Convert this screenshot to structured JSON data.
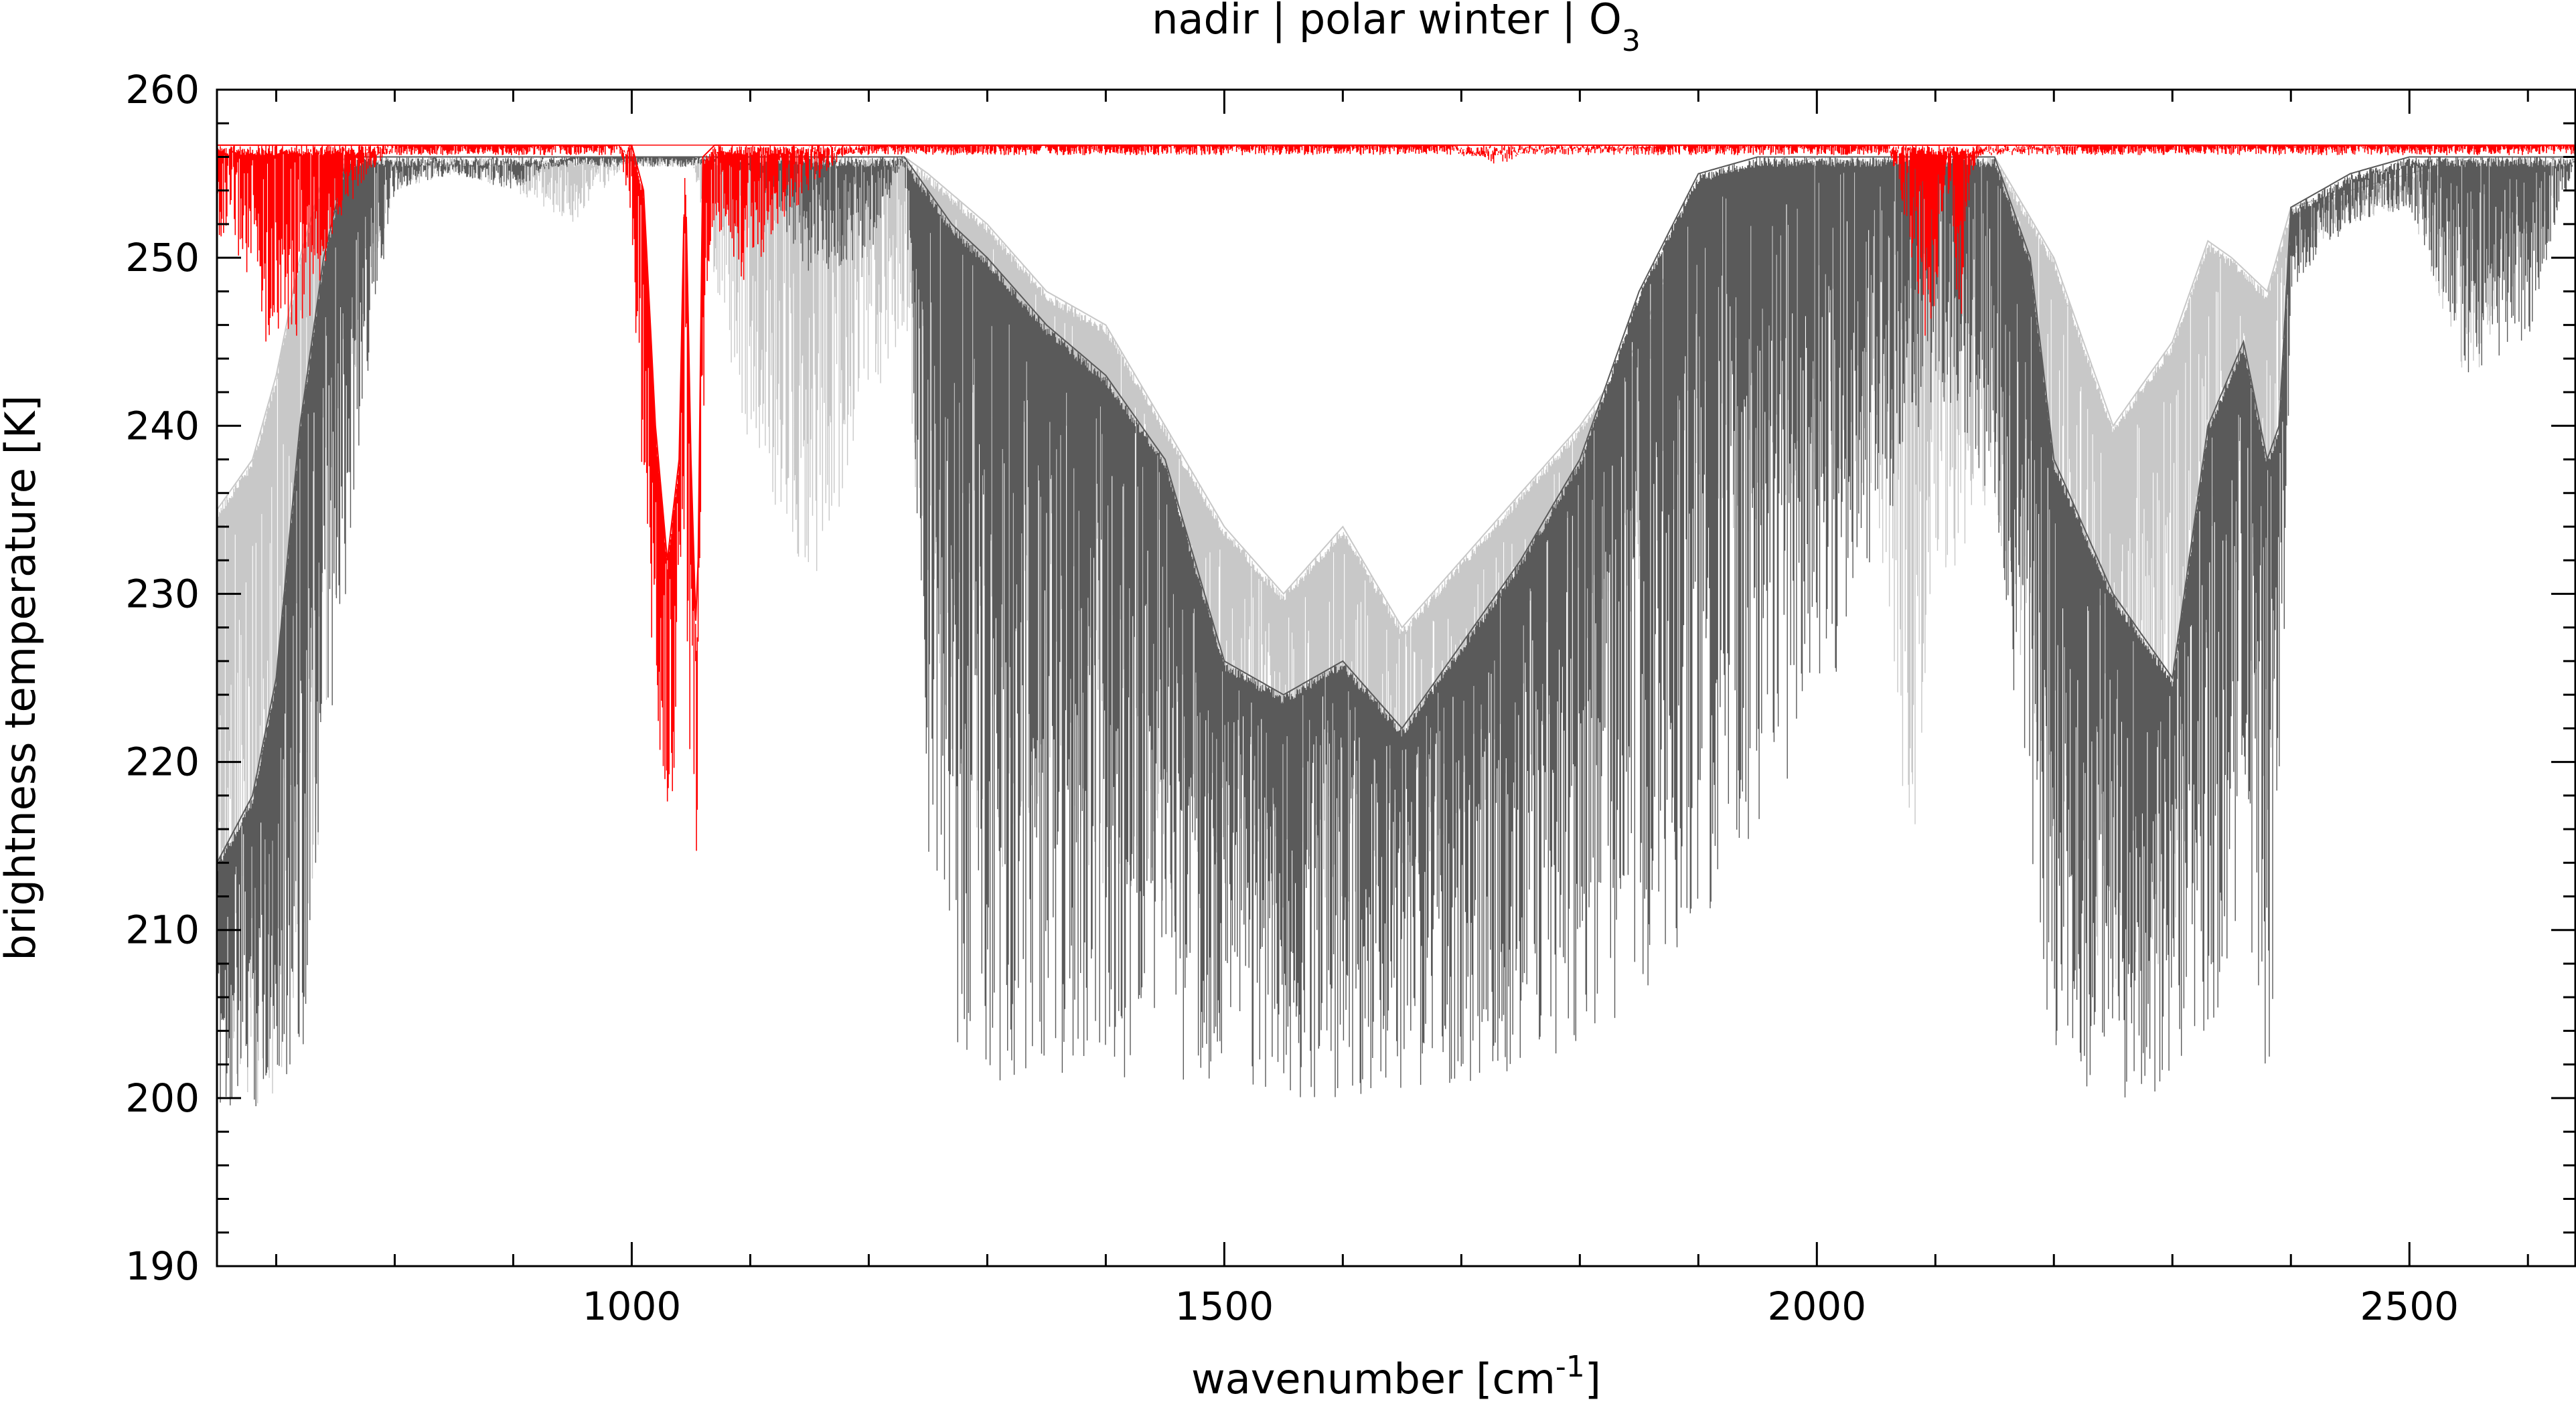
{
  "chart_data": {
    "type": "line",
    "title": "nadir | polar winter | O",
    "title_subscript": "3",
    "xlabel": "wavenumber [cm",
    "xlabel_superscript": "-1",
    "xlabel_suffix": "]",
    "ylabel": "brightness temperature [K]",
    "xlim": [
      650,
      2640
    ],
    "ylim": [
      190,
      260
    ],
    "x_ticks": [
      1000,
      1500,
      2000,
      2500
    ],
    "y_ticks": [
      190,
      200,
      210,
      220,
      230,
      240,
      250,
      260
    ],
    "grid": false,
    "legend": "none",
    "baseline_K": 256.7,
    "series": [
      {
        "color": "#c8c8c8",
        "style": "spectrum-envelope",
        "x": [
          650,
          680,
          700,
          720,
          740,
          760,
          780,
          800,
          850,
          900,
          950,
          1000,
          1050,
          1100,
          1150,
          1200,
          1230,
          1250,
          1300,
          1350,
          1400,
          1450,
          1500,
          1550,
          1600,
          1650,
          1700,
          1750,
          1800,
          1850,
          1900,
          1950,
          2000,
          2050,
          2080,
          2100,
          2150,
          2200,
          2250,
          2300,
          2330,
          2350,
          2380,
          2400,
          2450,
          2500,
          2550,
          2600,
          2640
        ],
        "min": [
          200,
          199,
          200,
          205,
          218,
          240,
          248,
          254,
          255,
          254,
          252,
          256,
          256,
          238,
          230,
          240,
          246,
          225,
          212,
          215,
          212,
          210,
          212,
          211,
          210,
          213,
          216,
          220,
          222,
          230,
          235,
          233,
          238,
          235,
          212,
          230,
          235,
          215,
          206,
          208,
          225,
          232,
          215,
          250,
          252,
          253,
          242,
          250,
          256
        ],
        "max": [
          235,
          238,
          243,
          250,
          255,
          256,
          256,
          256,
          256,
          256,
          256,
          256,
          256,
          256,
          256,
          256,
          256,
          255,
          252,
          248,
          246,
          240,
          234,
          230,
          234,
          228,
          232,
          236,
          240,
          245,
          254,
          255,
          256,
          256,
          256,
          256,
          256,
          250,
          240,
          245,
          251,
          250,
          248,
          253,
          254,
          255,
          256,
          256,
          256
        ]
      },
      {
        "color": "#5a5a5a",
        "style": "spectrum-envelope",
        "x": [
          650,
          680,
          700,
          720,
          740,
          760,
          780,
          800,
          850,
          900,
          950,
          1000,
          1050,
          1100,
          1150,
          1200,
          1230,
          1250,
          1270,
          1300,
          1350,
          1400,
          1450,
          1500,
          1550,
          1600,
          1650,
          1700,
          1750,
          1800,
          1850,
          1900,
          1950,
          2000,
          2050,
          2100,
          2150,
          2180,
          2200,
          2250,
          2300,
          2330,
          2360,
          2380,
          2390,
          2400,
          2450,
          2500,
          2550,
          2600,
          2640
        ],
        "min": [
          199,
          199,
          200,
          202,
          210,
          230,
          245,
          254,
          255,
          254,
          256,
          256,
          256,
          255,
          249,
          250,
          256,
          215,
          203,
          201,
          201,
          201,
          201,
          201,
          200,
          200,
          200,
          201,
          201,
          203,
          205,
          210,
          215,
          222,
          232,
          242,
          235,
          215,
          201,
          200,
          200,
          203,
          210,
          200,
          210,
          248,
          252,
          253,
          243,
          245,
          256
        ],
        "max": [
          214,
          218,
          225,
          240,
          250,
          256,
          256,
          256,
          256,
          256,
          256,
          256,
          256,
          256,
          256,
          256,
          256,
          254,
          252,
          250,
          246,
          243,
          238,
          226,
          224,
          226,
          222,
          227,
          232,
          238,
          248,
          255,
          256,
          256,
          256,
          256,
          256,
          250,
          238,
          230,
          225,
          240,
          245,
          238,
          240,
          253,
          255,
          256,
          256,
          256,
          256
        ]
      },
      {
        "color": "#ff0000",
        "style": "spectrum-envelope",
        "x": [
          650,
          670,
          690,
          710,
          730,
          750,
          780,
          800,
          990,
          1000,
          1010,
          1020,
          1030,
          1040,
          1045,
          1050,
          1055,
          1060,
          1070,
          1080,
          1090,
          1110,
          1130,
          1150,
          1180,
          1200,
          1210,
          1690,
          1700,
          1715,
          1730,
          1740,
          1750,
          1760,
          1800,
          1850,
          1880,
          2060,
          2070,
          2080,
          2090,
          2100,
          2105,
          2110,
          2115,
          2120,
          2125,
          2130,
          2140,
          2150,
          2160,
          2180,
          2200,
          2230,
          2640
        ],
        "min": [
          251,
          250,
          245,
          245,
          246,
          252,
          255,
          256.7,
          256.7,
          250,
          235,
          218,
          216,
          220,
          232,
          217,
          214,
          240,
          252,
          250,
          248,
          250,
          252,
          254,
          256,
          256.7,
          256.7,
          256.7,
          256,
          256,
          255.5,
          255.7,
          256.2,
          256.4,
          256.4,
          256.5,
          256.7,
          256.7,
          254,
          250,
          245,
          247,
          252,
          254,
          252,
          243,
          250,
          255,
          256,
          256.2,
          256.3,
          256.4,
          256.5,
          256.7,
          256.7
        ],
        "max": [
          256.7,
          256.7,
          256.7,
          256.7,
          256.7,
          256.7,
          256.7,
          256.7,
          256.7,
          256.7,
          254,
          240,
          232,
          238,
          256,
          238,
          226,
          256,
          256.7,
          256.7,
          256.7,
          256.7,
          256.7,
          256.7,
          256.7,
          256.7,
          256.7,
          256.7,
          256.7,
          256.7,
          256.7,
          256.7,
          256.7,
          256.7,
          256.7,
          256.7,
          256.7,
          256.7,
          256.7,
          256.7,
          256.7,
          256.7,
          256.7,
          256.7,
          256.7,
          256.7,
          256.7,
          256.7,
          256.7,
          256.7,
          256.7,
          256.7,
          256.7,
          256.7,
          256.7
        ]
      }
    ]
  }
}
